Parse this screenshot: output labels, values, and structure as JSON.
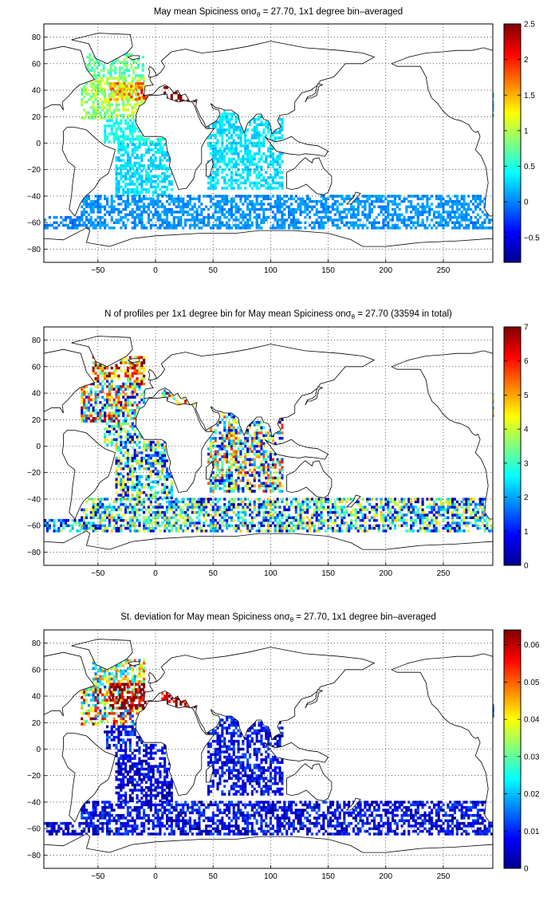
{
  "figure": {
    "background": "#ffffff",
    "land_fill": "#ffffff",
    "coast_color": "#000000",
    "grid_color": "#000000"
  },
  "chart_data": [
    {
      "type": "heatmap",
      "title": "May mean Spiciness onσθ = 27.70, 1x1 degree bin–averaged",
      "title_parts": {
        "pre": "May mean Spiciness on",
        "sym": "σ",
        "sub": "θ",
        "post": " = 27.70, 1x1 degree bin–averaged"
      },
      "xlabel": "",
      "ylabel": "",
      "xlim": [
        -97,
        293
      ],
      "ylim": [
        -90,
        90
      ],
      "xticks": [
        -50,
        0,
        50,
        100,
        150,
        200,
        250
      ],
      "yticks": [
        -80,
        -60,
        -40,
        -20,
        0,
        20,
        40,
        60,
        80
      ],
      "xtick_labels": [
        "−50",
        "0",
        "50",
        "100",
        "150",
        "200",
        "250"
      ],
      "ytick_labels": [
        "−80",
        "−60",
        "−40",
        "−20",
        "0",
        "20",
        "40",
        "60",
        "80"
      ],
      "grid": true,
      "colormap": "jet",
      "clim": [
        -0.85,
        2.5
      ],
      "colorbar_ticks": [
        -0.5,
        0,
        0.5,
        1,
        1.5,
        2,
        2.5
      ],
      "colorbar_tick_labels": [
        "−0.5",
        "0",
        "0.5",
        "1",
        "1.5",
        "2",
        "2.5"
      ],
      "regions": [
        {
          "lon": [
            -65,
            -10
          ],
          "lat": [
            18,
            50
          ],
          "value": 0.95,
          "spread": 0.3
        },
        {
          "lon": [
            -40,
            -8
          ],
          "lat": [
            32,
            46
          ],
          "value": 1.45,
          "spread": 0.5
        },
        {
          "lon": [
            -15,
            -6
          ],
          "lat": [
            33,
            43
          ],
          "value": 2.0,
          "spread": 0.35
        },
        {
          "lon": [
            5,
            36
          ],
          "lat": [
            31,
            42
          ],
          "value": 3.0,
          "spread": 0.2
        },
        {
          "lon": [
            -60,
            -10
          ],
          "lat": [
            50,
            68
          ],
          "value": 0.7,
          "spread": 0.25
        },
        {
          "lon": [
            -45,
            10
          ],
          "lat": [
            0,
            18
          ],
          "value": 0.45,
          "spread": 0.15
        },
        {
          "lon": [
            -35,
            15
          ],
          "lat": [
            -40,
            0
          ],
          "value": 0.3,
          "spread": 0.15
        },
        {
          "lon": [
            45,
            110
          ],
          "lat": [
            -35,
            25
          ],
          "value": 0.3,
          "spread": 0.15
        },
        {
          "lon": [
            -65,
            293
          ],
          "lat": [
            -65,
            -40
          ],
          "value": 0.05,
          "spread": 0.12
        },
        {
          "lon": [
            -97,
            -65
          ],
          "lat": [
            -65,
            -55
          ],
          "value": 0.0,
          "spread": 0.12
        },
        {
          "lon": [
            280,
            293
          ],
          "lat": [
            20,
            40
          ],
          "value": 0.35,
          "spread": 0.1
        }
      ]
    },
    {
      "type": "heatmap",
      "title": "N of profiles per 1x1 degree bin for May mean Spiciness onσθ = 27.70 (33594 in total)",
      "title_parts": {
        "pre": "N of profiles per 1x1 degree bin for May mean Spiciness on",
        "sym": "σ",
        "sub": "θ",
        "post": " = 27.70 (33594 in total)"
      },
      "xlabel": "",
      "ylabel": "",
      "xlim": [
        -97,
        293
      ],
      "ylim": [
        -90,
        90
      ],
      "xticks": [
        -50,
        0,
        50,
        100,
        150,
        200,
        250
      ],
      "yticks": [
        -80,
        -60,
        -40,
        -20,
        0,
        20,
        40,
        60,
        80
      ],
      "xtick_labels": [
        "−50",
        "0",
        "50",
        "100",
        "150",
        "200",
        "250"
      ],
      "ytick_labels": [
        "−80",
        "−60",
        "−40",
        "−20",
        "0",
        "20",
        "40",
        "60",
        "80"
      ],
      "grid": true,
      "colormap": "jet",
      "clim": [
        0,
        7
      ],
      "colorbar_ticks": [
        0,
        1,
        2,
        3,
        4,
        5,
        6,
        7
      ],
      "colorbar_tick_labels": [
        "0",
        "1",
        "2",
        "3",
        "4",
        "5",
        "6",
        "7"
      ],
      "total_profiles": 33594,
      "regions": [
        {
          "lon": [
            -65,
            -10
          ],
          "lat": [
            18,
            50
          ],
          "value": 3.5,
          "spread": 3.5
        },
        {
          "lon": [
            -55,
            -10
          ],
          "lat": [
            50,
            68
          ],
          "value": 5.5,
          "spread": 2.5
        },
        {
          "lon": [
            5,
            36
          ],
          "lat": [
            31,
            42
          ],
          "value": 4.5,
          "spread": 3
        },
        {
          "lon": [
            -45,
            10
          ],
          "lat": [
            0,
            18
          ],
          "value": 2.5,
          "spread": 2.5
        },
        {
          "lon": [
            -35,
            15
          ],
          "lat": [
            -40,
            0
          ],
          "value": 2.5,
          "spread": 2.5
        },
        {
          "lon": [
            45,
            110
          ],
          "lat": [
            -35,
            25
          ],
          "value": 3,
          "spread": 3
        },
        {
          "lon": [
            -65,
            293
          ],
          "lat": [
            -65,
            -40
          ],
          "value": 2.5,
          "spread": 2.5
        },
        {
          "lon": [
            -97,
            -65
          ],
          "lat": [
            -65,
            -55
          ],
          "value": 2,
          "spread": 2
        },
        {
          "lon": [
            280,
            293
          ],
          "lat": [
            20,
            40
          ],
          "value": 4,
          "spread": 2
        }
      ]
    },
    {
      "type": "heatmap",
      "title": "St. deviation for May mean Spiciness onσθ = 27.70, 1x1 degree bin–averaged",
      "title_parts": {
        "pre": "St. deviation for May mean Spiciness on",
        "sym": "σ",
        "sub": "θ",
        "post": " = 27.70, 1x1 degree bin–averaged"
      },
      "xlabel": "",
      "ylabel": "",
      "xlim": [
        -97,
        293
      ],
      "ylim": [
        -90,
        90
      ],
      "xticks": [
        -50,
        0,
        50,
        100,
        150,
        200,
        250
      ],
      "yticks": [
        -80,
        -60,
        -40,
        -20,
        0,
        20,
        40,
        60,
        80
      ],
      "xtick_labels": [
        "−50",
        "0",
        "50",
        "100",
        "150",
        "200",
        "250"
      ],
      "ytick_labels": [
        "−80",
        "−60",
        "−40",
        "−20",
        "0",
        "20",
        "40",
        "60",
        "80"
      ],
      "grid": true,
      "colormap": "jet",
      "clim": [
        0,
        0.064
      ],
      "colorbar_ticks": [
        0,
        0.01,
        0.02,
        0.03,
        0.04,
        0.05,
        0.06
      ],
      "colorbar_tick_labels": [
        "0",
        "0.01",
        "0.02",
        "0.03",
        "0.04",
        "0.05",
        "0.06"
      ],
      "regions": [
        {
          "lon": [
            -65,
            -10
          ],
          "lat": [
            18,
            50
          ],
          "value": 0.04,
          "spread": 0.03
        },
        {
          "lon": [
            -40,
            -8
          ],
          "lat": [
            30,
            50
          ],
          "value": 0.07,
          "spread": 0.02
        },
        {
          "lon": [
            5,
            36
          ],
          "lat": [
            31,
            42
          ],
          "value": 0.07,
          "spread": 0.02
        },
        {
          "lon": [
            -55,
            -10
          ],
          "lat": [
            50,
            68
          ],
          "value": 0.035,
          "spread": 0.02
        },
        {
          "lon": [
            -45,
            10
          ],
          "lat": [
            0,
            18
          ],
          "value": 0.008,
          "spread": 0.008
        },
        {
          "lon": [
            -35,
            15
          ],
          "lat": [
            -40,
            0
          ],
          "value": 0.006,
          "spread": 0.006
        },
        {
          "lon": [
            45,
            110
          ],
          "lat": [
            -35,
            25
          ],
          "value": 0.007,
          "spread": 0.007
        },
        {
          "lon": [
            -65,
            293
          ],
          "lat": [
            -65,
            -40
          ],
          "value": 0.007,
          "spread": 0.007
        },
        {
          "lon": [
            -97,
            -65
          ],
          "lat": [
            -65,
            -55
          ],
          "value": 0.006,
          "spread": 0.006
        },
        {
          "lon": [
            280,
            293
          ],
          "lat": [
            20,
            40
          ],
          "value": 0.01,
          "spread": 0.008
        }
      ]
    }
  ]
}
